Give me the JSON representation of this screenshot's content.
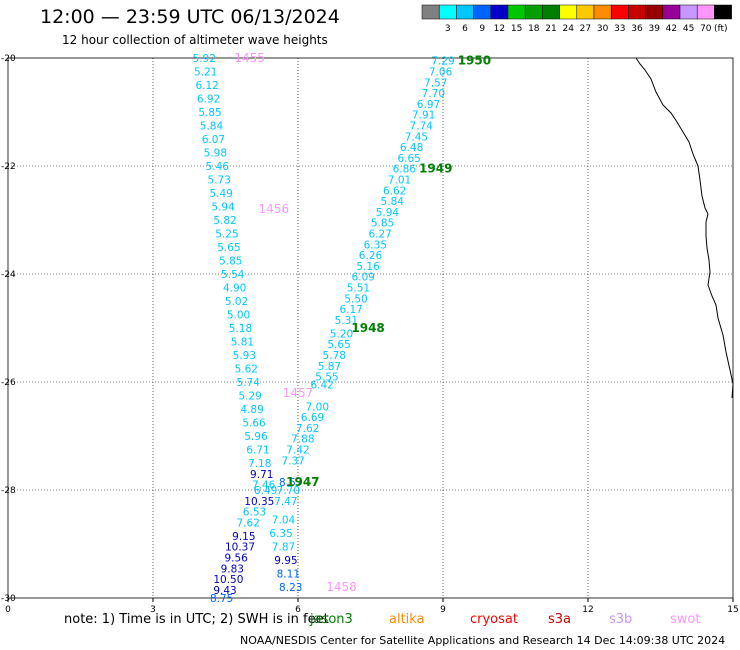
{
  "title": "12:00 — 23:59 UTC 06/13/2024",
  "subtitle": "12 hour collection of altimeter wave heights",
  "legend": {
    "unit": "(ft)",
    "bins": [
      {
        "label": "",
        "color": "#808080"
      },
      {
        "label": "3",
        "color": "#00ffff"
      },
      {
        "label": "6",
        "color": "#00c8ff"
      },
      {
        "label": "9",
        "color": "#0064ff"
      },
      {
        "label": "12",
        "color": "#0000c8"
      },
      {
        "label": "15",
        "color": "#00c800"
      },
      {
        "label": "18",
        "color": "#00a000"
      },
      {
        "label": "21",
        "color": "#008000"
      },
      {
        "label": "24",
        "color": "#ffff00"
      },
      {
        "label": "27",
        "color": "#ffc800"
      },
      {
        "label": "30",
        "color": "#ff8c00"
      },
      {
        "label": "33",
        "color": "#ff0000"
      },
      {
        "label": "36",
        "color": "#c80000"
      },
      {
        "label": "39",
        "color": "#960000"
      },
      {
        "label": "42",
        "color": "#960096"
      },
      {
        "label": "45",
        "color": "#c896ff"
      },
      {
        "label": "70",
        "color": "#ff96ff"
      },
      {
        "label": "",
        "color": "#000000"
      }
    ]
  },
  "note": "note: 1) Time is in UTC; 2) SWH is in feet",
  "satellites": [
    {
      "name": "jason3",
      "color": "#008000"
    },
    {
      "name": "altika",
      "color": "#ff8c00"
    },
    {
      "name": "cryosat",
      "color": "#ff0000"
    },
    {
      "name": "s3a",
      "color": "#c80000"
    },
    {
      "name": "s3b",
      "color": "#c896ff"
    },
    {
      "name": "swot",
      "color": "#ff96ff"
    }
  ],
  "footer": "NOAA/NESDIS Center for Satellite Applications and Research    14 Dec 14:09:38 UTC 2024",
  "chart_data": {
    "type": "scatter",
    "xlim": [
      0,
      15
    ],
    "ylim": [
      -30,
      -20
    ],
    "x_ticks": [
      "0",
      "3",
      "6",
      "9",
      "12",
      "15"
    ],
    "y_ticks": [
      "-20",
      "-22",
      "-24",
      "-26",
      "-28",
      "-30"
    ],
    "grid": true,
    "series": [
      {
        "name": "swot",
        "labels": [
          {
            "text": "1455",
            "x": 5.0,
            "y": -20.0
          },
          {
            "text": "1456",
            "x": 5.5,
            "y": -22.8
          },
          {
            "text": "1457",
            "x": 6.0,
            "y": -26.2
          },
          {
            "text": "1458",
            "x": 6.9,
            "y": -29.8
          }
        ],
        "points": [
          {
            "v": "5.92",
            "x": 4.06,
            "y": -20.0,
            "color": "#00c8ff"
          },
          {
            "v": "5.21",
            "x": 4.09,
            "y": -20.25,
            "color": "#00c8ff"
          },
          {
            "v": "6.12",
            "x": 4.12,
            "y": -20.5,
            "color": "#00c8ff"
          },
          {
            "v": "6.92",
            "x": 4.15,
            "y": -20.75,
            "color": "#00c8ff"
          },
          {
            "v": "5.85",
            "x": 4.18,
            "y": -21.0,
            "color": "#00c8ff"
          },
          {
            "v": "5.84",
            "x": 4.21,
            "y": -21.25,
            "color": "#00c8ff"
          },
          {
            "v": "6.07",
            "x": 4.25,
            "y": -21.5,
            "color": "#00c8ff"
          },
          {
            "v": "5.98",
            "x": 4.29,
            "y": -21.75,
            "color": "#00c8ff"
          },
          {
            "v": "5.46",
            "x": 4.33,
            "y": -22.0,
            "color": "#00c8ff"
          },
          {
            "v": "5.73",
            "x": 4.37,
            "y": -22.25,
            "color": "#00c8ff"
          },
          {
            "v": "5.49",
            "x": 4.41,
            "y": -22.5,
            "color": "#00c8ff"
          },
          {
            "v": "5.94",
            "x": 4.45,
            "y": -22.75,
            "color": "#00c8ff"
          },
          {
            "v": "5.82",
            "x": 4.49,
            "y": -23.0,
            "color": "#00c8ff"
          },
          {
            "v": "5.25",
            "x": 4.53,
            "y": -23.25,
            "color": "#00c8ff"
          },
          {
            "v": "5.65",
            "x": 4.57,
            "y": -23.5,
            "color": "#00c8ff"
          },
          {
            "v": "5.85",
            "x": 4.61,
            "y": -23.75,
            "color": "#00c8ff"
          },
          {
            "v": "5.54",
            "x": 4.65,
            "y": -24.0,
            "color": "#00c8ff"
          },
          {
            "v": "4.90",
            "x": 4.69,
            "y": -24.25,
            "color": "#00c8ff"
          },
          {
            "v": "5.02",
            "x": 4.73,
            "y": -24.5,
            "color": "#00c8ff"
          },
          {
            "v": "5.00",
            "x": 4.77,
            "y": -24.75,
            "color": "#00c8ff"
          },
          {
            "v": "5.18",
            "x": 4.81,
            "y": -25.0,
            "color": "#00c8ff"
          },
          {
            "v": "5.81",
            "x": 4.85,
            "y": -25.25,
            "color": "#00c8ff"
          },
          {
            "v": "5.93",
            "x": 4.89,
            "y": -25.5,
            "color": "#00c8ff"
          },
          {
            "v": "5.62",
            "x": 4.93,
            "y": -25.75,
            "color": "#00c8ff"
          },
          {
            "v": "5.74",
            "x": 4.97,
            "y": -26.0,
            "color": "#00c8ff"
          },
          {
            "v": "5.29",
            "x": 5.01,
            "y": -26.25,
            "color": "#00c8ff"
          },
          {
            "v": "4.89",
            "x": 5.05,
            "y": -26.5,
            "color": "#00c8ff"
          },
          {
            "v": "5.66",
            "x": 5.09,
            "y": -26.75,
            "color": "#00c8ff"
          },
          {
            "v": "5.96",
            "x": 5.13,
            "y": -27.0,
            "color": "#00c8ff"
          },
          {
            "v": "6.71",
            "x": 5.17,
            "y": -27.25,
            "color": "#00c8ff"
          },
          {
            "v": "7.18",
            "x": 5.21,
            "y": -27.5,
            "color": "#00c8ff"
          },
          {
            "v": "9.71",
            "x": 5.25,
            "y": -27.7,
            "color": "#0000c8"
          },
          {
            "v": "7.46",
            "x": 5.29,
            "y": -27.9,
            "color": "#00c8ff"
          },
          {
            "v": "6.49",
            "x": 5.33,
            "y": -28.0,
            "color": "#00c8ff"
          },
          {
            "v": "10.35",
            "x": 5.2,
            "y": -28.2,
            "color": "#0000c8"
          },
          {
            "v": "6.53",
            "x": 5.1,
            "y": -28.4,
            "color": "#00c8ff"
          },
          {
            "v": "7.62",
            "x": 4.97,
            "y": -28.6,
            "color": "#00c8ff"
          },
          {
            "v": "9.15",
            "x": 4.88,
            "y": -28.85,
            "color": "#0000c8"
          },
          {
            "v": "10.37",
            "x": 4.8,
            "y": -29.05,
            "color": "#0000c8"
          },
          {
            "v": "9.56",
            "x": 4.72,
            "y": -29.25,
            "color": "#0000c8"
          },
          {
            "v": "9.83",
            "x": 4.64,
            "y": -29.45,
            "color": "#0000c8"
          },
          {
            "v": "10.50",
            "x": 4.56,
            "y": -29.65,
            "color": "#0000c8"
          },
          {
            "v": "9.43",
            "x": 4.49,
            "y": -29.85,
            "color": "#0000c8"
          },
          {
            "v": "8.75",
            "x": 4.42,
            "y": -30.0,
            "color": "#0064ff"
          }
        ]
      },
      {
        "name": "jason3",
        "labels": [
          {
            "text": "1950",
            "x": 9.65,
            "y": -20.05
          },
          {
            "text": "1949",
            "x": 8.85,
            "y": -22.05
          },
          {
            "text": "1948",
            "x": 7.45,
            "y": -25.0
          },
          {
            "text": "1947",
            "x": 6.1,
            "y": -27.85
          }
        ],
        "points": [
          {
            "v": "7.29",
            "x": 9.0,
            "y": -20.05,
            "color": "#00c8ff"
          },
          {
            "v": "7.06",
            "x": 8.95,
            "y": -20.25,
            "color": "#00c8ff"
          },
          {
            "v": "7.57",
            "x": 8.85,
            "y": -20.45,
            "color": "#00c8ff"
          },
          {
            "v": "7.70",
            "x": 8.8,
            "y": -20.65,
            "color": "#00c8ff"
          },
          {
            "v": "6.97",
            "x": 8.7,
            "y": -20.85,
            "color": "#00c8ff"
          },
          {
            "v": "7.91",
            "x": 8.6,
            "y": -21.05,
            "color": "#00c8ff"
          },
          {
            "v": "7.74",
            "x": 8.55,
            "y": -21.25,
            "color": "#00c8ff"
          },
          {
            "v": "7.45",
            "x": 8.45,
            "y": -21.45,
            "color": "#00c8ff"
          },
          {
            "v": "6.48",
            "x": 8.35,
            "y": -21.65,
            "color": "#00c8ff"
          },
          {
            "v": "6.65",
            "x": 8.3,
            "y": -21.85,
            "color": "#00c8ff"
          },
          {
            "v": "6.86",
            "x": 8.2,
            "y": -22.05,
            "color": "#00c8ff"
          },
          {
            "v": "7.01",
            "x": 8.1,
            "y": -22.25,
            "color": "#00c8ff"
          },
          {
            "v": "6.62",
            "x": 8.0,
            "y": -22.45,
            "color": "#00c8ff"
          },
          {
            "v": "5.84",
            "x": 7.95,
            "y": -22.65,
            "color": "#00c8ff"
          },
          {
            "v": "5.94",
            "x": 7.85,
            "y": -22.85,
            "color": "#00c8ff"
          },
          {
            "v": "5.85",
            "x": 7.75,
            "y": -23.05,
            "color": "#00c8ff"
          },
          {
            "v": "6.27",
            "x": 7.7,
            "y": -23.25,
            "color": "#00c8ff"
          },
          {
            "v": "6.35",
            "x": 7.6,
            "y": -23.45,
            "color": "#00c8ff"
          },
          {
            "v": "6.26",
            "x": 7.5,
            "y": -23.65,
            "color": "#00c8ff"
          },
          {
            "v": "5.16",
            "x": 7.45,
            "y": -23.85,
            "color": "#00c8ff"
          },
          {
            "v": "6.09",
            "x": 7.35,
            "y": -24.05,
            "color": "#00c8ff"
          },
          {
            "v": "5.51",
            "x": 7.25,
            "y": -24.25,
            "color": "#00c8ff"
          },
          {
            "v": "5.50",
            "x": 7.2,
            "y": -24.45,
            "color": "#00c8ff"
          },
          {
            "v": "6.17",
            "x": 7.1,
            "y": -24.65,
            "color": "#00c8ff"
          },
          {
            "v": "5.31",
            "x": 7.0,
            "y": -24.85,
            "color": "#00c8ff"
          },
          {
            "v": "5.20",
            "x": 6.9,
            "y": -25.1,
            "color": "#00c8ff"
          },
          {
            "v": "5.65",
            "x": 6.85,
            "y": -25.3,
            "color": "#00c8ff"
          },
          {
            "v": "5.78",
            "x": 6.75,
            "y": -25.5,
            "color": "#00c8ff"
          },
          {
            "v": "5.87",
            "x": 6.65,
            "y": -25.7,
            "color": "#00c8ff"
          },
          {
            "v": "5.55",
            "x": 6.6,
            "y": -25.9,
            "color": "#00c8ff"
          },
          {
            "v": "6.42",
            "x": 6.5,
            "y": -26.05,
            "color": "#00c8ff"
          },
          {
            "v": "7.00",
            "x": 6.4,
            "y": -26.45,
            "color": "#00c8ff"
          },
          {
            "v": "6.69",
            "x": 6.3,
            "y": -26.65,
            "color": "#00c8ff"
          },
          {
            "v": "7.62",
            "x": 6.2,
            "y": -26.85,
            "color": "#00c8ff"
          },
          {
            "v": "7.88",
            "x": 6.1,
            "y": -27.05,
            "color": "#00c8ff"
          },
          {
            "v": "7.42",
            "x": 6.0,
            "y": -27.25,
            "color": "#00c8ff"
          },
          {
            "v": "7.37",
            "x": 5.9,
            "y": -27.45,
            "color": "#00c8ff"
          },
          {
            "v": "8.57",
            "x": 5.85,
            "y": -27.85,
            "color": "#0064ff"
          },
          {
            "v": "7.70",
            "x": 5.8,
            "y": -28.0,
            "color": "#00c8ff"
          },
          {
            "v": "7.47",
            "x": 5.75,
            "y": -28.2,
            "color": "#00c8ff"
          },
          {
            "v": "7.04",
            "x": 5.7,
            "y": -28.55,
            "color": "#00c8ff"
          },
          {
            "v": "6.35",
            "x": 5.65,
            "y": -28.8,
            "color": "#00c8ff"
          },
          {
            "v": "7.87",
            "x": 5.7,
            "y": -29.05,
            "color": "#00c8ff"
          },
          {
            "v": "9.95",
            "x": 5.75,
            "y": -29.3,
            "color": "#0000c8"
          },
          {
            "v": "8.11",
            "x": 5.8,
            "y": -29.55,
            "color": "#0064ff"
          },
          {
            "v": "8.23",
            "x": 5.85,
            "y": -29.8,
            "color": "#0064ff"
          }
        ]
      }
    ]
  }
}
